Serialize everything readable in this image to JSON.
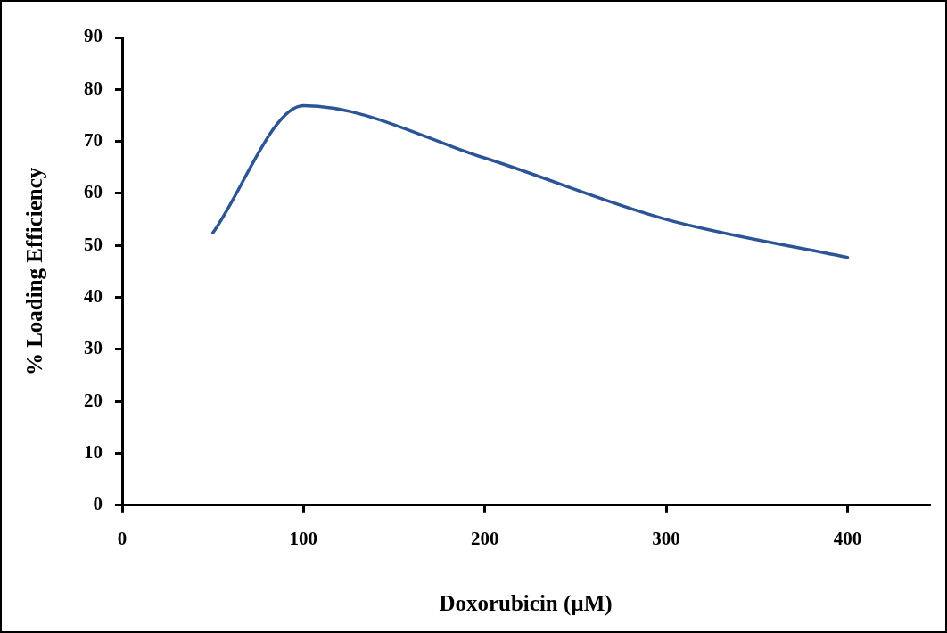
{
  "chart_data": {
    "type": "line",
    "xlabel": "Doxorubicin (µM)",
    "ylabel": "% Loading Efficiency",
    "x": [
      50,
      100,
      200,
      300,
      400
    ],
    "series": [
      {
        "color": "#2b5597",
        "values": [
          52.4,
          76.9,
          66.8,
          55.0,
          47.7
        ]
      }
    ],
    "xlim": [
      0,
      445
    ],
    "xticks": [
      0,
      100,
      200,
      300,
      400
    ],
    "ylim": [
      0,
      90
    ],
    "yticks": [
      0,
      10,
      20,
      30,
      40,
      50,
      60,
      70,
      80,
      90
    ],
    "grid": false,
    "legend": false,
    "marker": "none",
    "line_style": "solid"
  }
}
